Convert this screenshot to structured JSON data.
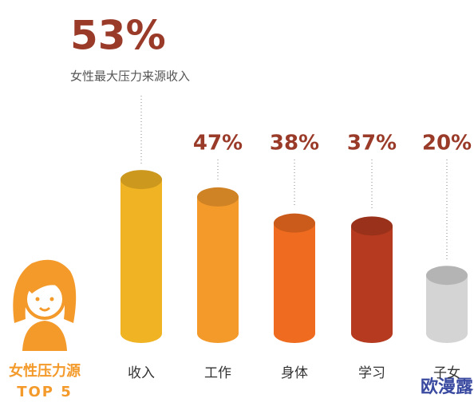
{
  "chart_data": {
    "type": "bar",
    "subtitle": "女性最大压力来源收入",
    "categories": [
      "收入",
      "工作",
      "身体",
      "学习",
      "子女"
    ],
    "values": [
      53,
      47,
      38,
      37,
      20
    ],
    "value_labels": [
      "53%",
      "47%",
      "38%",
      "37%",
      "20%"
    ],
    "colors": [
      "#f0b323",
      "#f39a2b",
      "#ef6b1f",
      "#b53a1f",
      "#d4d4d4"
    ],
    "side_title": "女性压力源",
    "side_subtitle": "TOP 5",
    "watermark": "欧漫露"
  }
}
